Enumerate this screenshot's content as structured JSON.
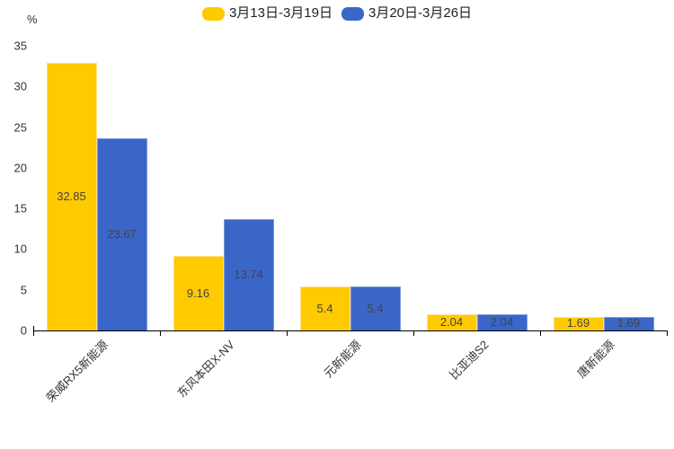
{
  "chart_data": {
    "type": "bar",
    "title": "",
    "ylabel": "%",
    "ylim": [
      0,
      35
    ],
    "yticks": [
      0,
      5,
      10,
      15,
      20,
      25,
      30,
      35
    ],
    "grid": false,
    "legend_position": "top",
    "categories": [
      "荣威RX5新能源",
      "东风本田X-NV",
      "元新能源",
      "比亚迪S2",
      "唐新能源"
    ],
    "series": [
      {
        "name": "3月13日-3月19日",
        "color": "#FFCA00",
        "border_color": "#FFE08A",
        "values": [
          32.85,
          9.16,
          5.4,
          2.04,
          1.69
        ]
      },
      {
        "name": "3月20日-3月26日",
        "color": "#3A66C8",
        "border_color": "#7E99DC",
        "values": [
          23.67,
          13.74,
          5.4,
          2.04,
          1.69
        ]
      }
    ],
    "value_label_color": "#444444",
    "axis_color": "#000000",
    "tick_label_color": "#333333"
  }
}
